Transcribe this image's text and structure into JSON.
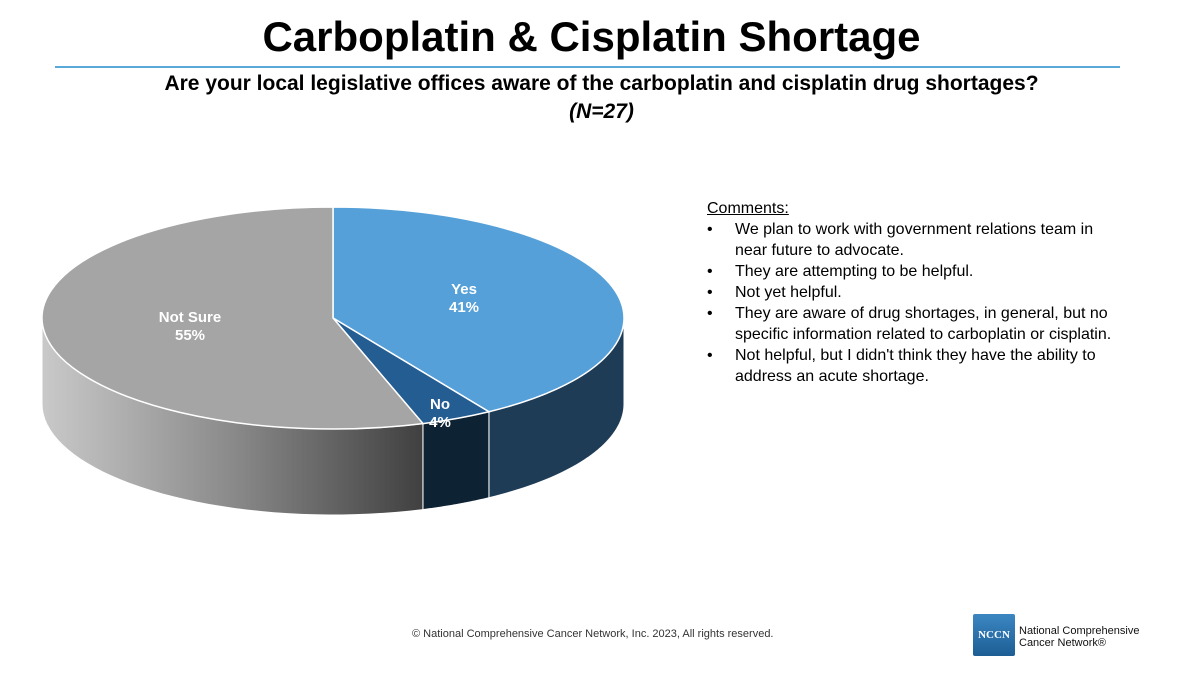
{
  "header": {
    "title": "Carboplatin & Cisplatin Shortage",
    "question": "Are your local legislative offices aware of the carboplatin and cisplatin drug shortages?",
    "sample": "(N=27)"
  },
  "chart_data": {
    "type": "pie",
    "title": "Are your local legislative offices aware of the carboplatin and cisplatin drug shortages?",
    "categories": [
      "Yes",
      "No",
      "Not Sure"
    ],
    "values": [
      41,
      4,
      55
    ],
    "labels": [
      "41%",
      "4%",
      "55%"
    ],
    "colors": [
      "#55a0d9",
      "#245d92",
      "#a5a5a5"
    ],
    "side_colors": [
      "#1f3c57",
      "#0d2233",
      "#777777"
    ],
    "three_d": true
  },
  "comments": {
    "heading": "Comments:",
    "items": [
      "We plan to work with government relations team in near future to advocate.",
      "They are attempting to be helpful.",
      "Not yet helpful.",
      "They are aware of drug shortages, in general, but no specific information related to carboplatin or cisplatin.",
      "Not helpful, but I didn't think they have the ability to address an acute shortage."
    ]
  },
  "footer": {
    "copyright": "© National Comprehensive Cancer Network, Inc. 2023, All rights reserved.",
    "logo_text": "NCCN",
    "org_line1": "National Comprehensive",
    "org_line2": "Cancer Network®"
  }
}
